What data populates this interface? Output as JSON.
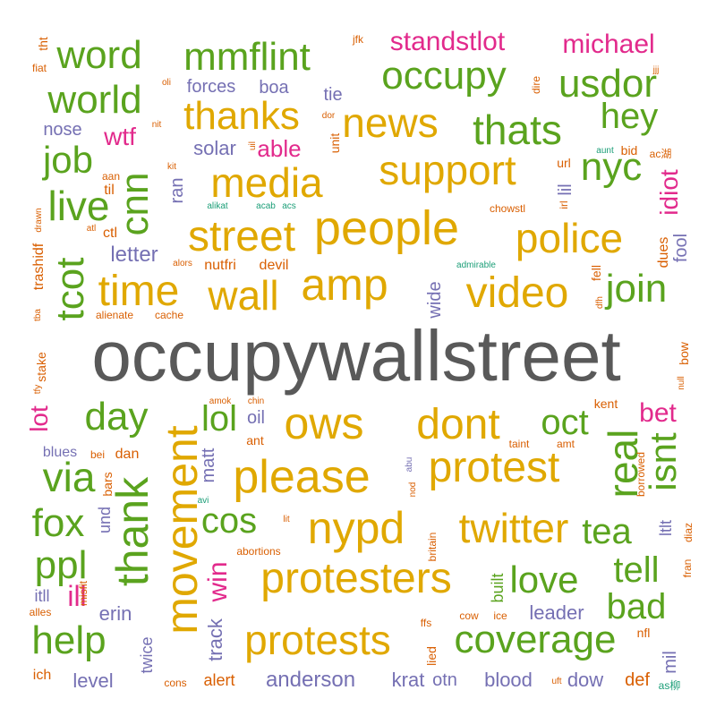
{
  "palette": {
    "gray": "#595959",
    "gold": "#E0A800",
    "green": "#5AA31E",
    "magenta": "#E22A8C",
    "purple": "#7570B3",
    "orange": "#D95F02",
    "teal": "#1B9E77"
  },
  "words": [
    {
      "text": "occupywallstreet",
      "color": "gray"
    },
    {
      "text": "people",
      "color": "gold"
    },
    {
      "text": "street",
      "color": "gold"
    },
    {
      "text": "amp",
      "color": "gold"
    },
    {
      "text": "support",
      "color": "gold"
    },
    {
      "text": "media",
      "color": "gold"
    },
    {
      "text": "thanks",
      "color": "gold"
    },
    {
      "text": "news",
      "color": "gold"
    },
    {
      "text": "time",
      "color": "gold"
    },
    {
      "text": "wall",
      "color": "gold"
    },
    {
      "text": "video",
      "color": "gold"
    },
    {
      "text": "police",
      "color": "gold"
    },
    {
      "text": "ows",
      "color": "gold"
    },
    {
      "text": "dont",
      "color": "gold"
    },
    {
      "text": "please",
      "color": "gold"
    },
    {
      "text": "protest",
      "color": "gold"
    },
    {
      "text": "nypd",
      "color": "gold"
    },
    {
      "text": "twitter",
      "color": "gold"
    },
    {
      "text": "protesters",
      "color": "gold"
    },
    {
      "text": "protests",
      "color": "gold"
    },
    {
      "text": "coverage",
      "color": "green"
    },
    {
      "text": "movement",
      "color": "gold"
    },
    {
      "text": "thank",
      "color": "green"
    },
    {
      "text": "word",
      "color": "green"
    },
    {
      "text": "mmflint",
      "color": "green"
    },
    {
      "text": "occupy",
      "color": "green"
    },
    {
      "text": "usdor",
      "color": "green"
    },
    {
      "text": "world",
      "color": "green"
    },
    {
      "text": "thats",
      "color": "green"
    },
    {
      "text": "hey",
      "color": "green"
    },
    {
      "text": "job",
      "color": "green"
    },
    {
      "text": "live",
      "color": "green"
    },
    {
      "text": "cnn",
      "color": "green"
    },
    {
      "text": "nyc",
      "color": "green"
    },
    {
      "text": "tcot",
      "color": "green"
    },
    {
      "text": "join",
      "color": "green"
    },
    {
      "text": "day",
      "color": "green"
    },
    {
      "text": "via",
      "color": "green"
    },
    {
      "text": "fox",
      "color": "green"
    },
    {
      "text": "ppl",
      "color": "green"
    },
    {
      "text": "help",
      "color": "green"
    },
    {
      "text": "oct",
      "color": "green"
    },
    {
      "text": "real",
      "color": "green"
    },
    {
      "text": "isnt",
      "color": "green"
    },
    {
      "text": "lol",
      "color": "green"
    },
    {
      "text": "cos",
      "color": "green"
    },
    {
      "text": "tea",
      "color": "green"
    },
    {
      "text": "tell",
      "color": "green"
    },
    {
      "text": "love",
      "color": "green"
    },
    {
      "text": "bad",
      "color": "green"
    },
    {
      "text": "standstlot",
      "color": "magenta"
    },
    {
      "text": "michael",
      "color": "magenta"
    },
    {
      "text": "wtf",
      "color": "magenta"
    },
    {
      "text": "able",
      "color": "magenta"
    },
    {
      "text": "idiot",
      "color": "magenta"
    },
    {
      "text": "lot",
      "color": "magenta"
    },
    {
      "text": "bet",
      "color": "magenta"
    },
    {
      "text": "ill",
      "color": "magenta"
    },
    {
      "text": "win",
      "color": "magenta"
    },
    {
      "text": "forces",
      "color": "purple"
    },
    {
      "text": "boa",
      "color": "purple"
    },
    {
      "text": "tie",
      "color": "purple"
    },
    {
      "text": "solar",
      "color": "purple"
    },
    {
      "text": "nose",
      "color": "purple"
    },
    {
      "text": "letter",
      "color": "purple"
    },
    {
      "text": "ran",
      "color": "purple"
    },
    {
      "text": "lil",
      "color": "purple"
    },
    {
      "text": "fool",
      "color": "purple"
    },
    {
      "text": "wide",
      "color": "purple"
    },
    {
      "text": "matt",
      "color": "purple"
    },
    {
      "text": "oil",
      "color": "purple"
    },
    {
      "text": "erin",
      "color": "purple"
    },
    {
      "text": "leader",
      "color": "purple"
    },
    {
      "text": "level",
      "color": "purple"
    },
    {
      "text": "twice",
      "color": "purple"
    },
    {
      "text": "track",
      "color": "purple"
    },
    {
      "text": "anderson",
      "color": "purple"
    },
    {
      "text": "krat",
      "color": "purple"
    },
    {
      "text": "otn",
      "color": "purple"
    },
    {
      "text": "blood",
      "color": "purple"
    },
    {
      "text": "dow",
      "color": "purple"
    },
    {
      "text": "itll",
      "color": "purple"
    },
    {
      "text": "ltlt",
      "color": "purple"
    },
    {
      "text": "und",
      "color": "purple"
    },
    {
      "text": "blues",
      "color": "purple"
    },
    {
      "text": "mil",
      "color": "purple"
    },
    {
      "text": "built",
      "color": "green"
    },
    {
      "text": "def",
      "color": "orange"
    },
    {
      "text": "alert",
      "color": "orange"
    },
    {
      "text": "devil",
      "color": "orange"
    },
    {
      "text": "nutfri",
      "color": "orange"
    },
    {
      "text": "ctl",
      "color": "orange"
    },
    {
      "text": "trashidf",
      "color": "orange"
    },
    {
      "text": "til",
      "color": "orange"
    },
    {
      "text": "unit",
      "color": "orange"
    },
    {
      "text": "url",
      "color": "orange"
    },
    {
      "text": "bid",
      "color": "orange"
    },
    {
      "text": "dues",
      "color": "orange"
    },
    {
      "text": "fell",
      "color": "orange"
    },
    {
      "text": "kent",
      "color": "orange"
    },
    {
      "text": "ant",
      "color": "orange"
    },
    {
      "text": "dan",
      "color": "orange"
    },
    {
      "text": "bars",
      "color": "orange"
    },
    {
      "text": "stake",
      "color": "orange"
    },
    {
      "text": "bow",
      "color": "orange"
    },
    {
      "text": "fran",
      "color": "orange"
    },
    {
      "text": "ich",
      "color": "orange"
    },
    {
      "text": "nfl",
      "color": "orange"
    },
    {
      "text": "lied",
      "color": "orange"
    },
    {
      "text": "tht",
      "color": "orange"
    },
    {
      "text": "fiat",
      "color": "orange"
    },
    {
      "text": "jfk",
      "color": "orange"
    },
    {
      "text": "oli",
      "color": "orange"
    },
    {
      "text": "dire",
      "color": "orange"
    },
    {
      "text": "jjj",
      "color": "orange"
    },
    {
      "text": "uil",
      "color": "orange"
    },
    {
      "text": "dor",
      "color": "orange"
    },
    {
      "text": "nit",
      "color": "orange"
    },
    {
      "text": "kit",
      "color": "orange"
    },
    {
      "text": "aan",
      "color": "orange"
    },
    {
      "text": "drawn",
      "color": "orange"
    },
    {
      "text": "atl",
      "color": "orange"
    },
    {
      "text": "alors",
      "color": "orange"
    },
    {
      "text": "alienate",
      "color": "orange"
    },
    {
      "text": "cache",
      "color": "orange"
    },
    {
      "text": "tba",
      "color": "orange"
    },
    {
      "text": "tfy",
      "color": "orange"
    },
    {
      "text": "chowstl",
      "color": "orange"
    },
    {
      "text": "irl",
      "color": "orange"
    },
    {
      "text": "aunt",
      "color": "teal"
    },
    {
      "text": "ac湖",
      "color": "orange"
    },
    {
      "text": "alikat",
      "color": "teal"
    },
    {
      "text": "acab",
      "color": "teal"
    },
    {
      "text": "acs",
      "color": "teal"
    },
    {
      "text": "admirable",
      "color": "teal"
    },
    {
      "text": "dfh",
      "color": "orange"
    },
    {
      "text": "null",
      "color": "orange"
    },
    {
      "text": "amok",
      "color": "orange"
    },
    {
      "text": "chin",
      "color": "orange"
    },
    {
      "text": "taint",
      "color": "orange"
    },
    {
      "text": "amt",
      "color": "orange"
    },
    {
      "text": "borrowed",
      "color": "orange"
    },
    {
      "text": "bei",
      "color": "orange"
    },
    {
      "text": "abu",
      "color": "purple"
    },
    {
      "text": "nod",
      "color": "orange"
    },
    {
      "text": "avi",
      "color": "teal"
    },
    {
      "text": "lit",
      "color": "orange"
    },
    {
      "text": "britain",
      "color": "orange"
    },
    {
      "text": "abortions",
      "color": "orange"
    },
    {
      "text": "diaz",
      "color": "orange"
    },
    {
      "text": "misfit",
      "color": "orange"
    },
    {
      "text": "alles",
      "color": "orange"
    },
    {
      "text": "ffs",
      "color": "orange"
    },
    {
      "text": "cow",
      "color": "orange"
    },
    {
      "text": "ice",
      "color": "orange"
    },
    {
      "text": "cons",
      "color": "orange"
    },
    {
      "text": "uft",
      "color": "orange"
    },
    {
      "text": "as柳",
      "color": "teal"
    }
  ]
}
